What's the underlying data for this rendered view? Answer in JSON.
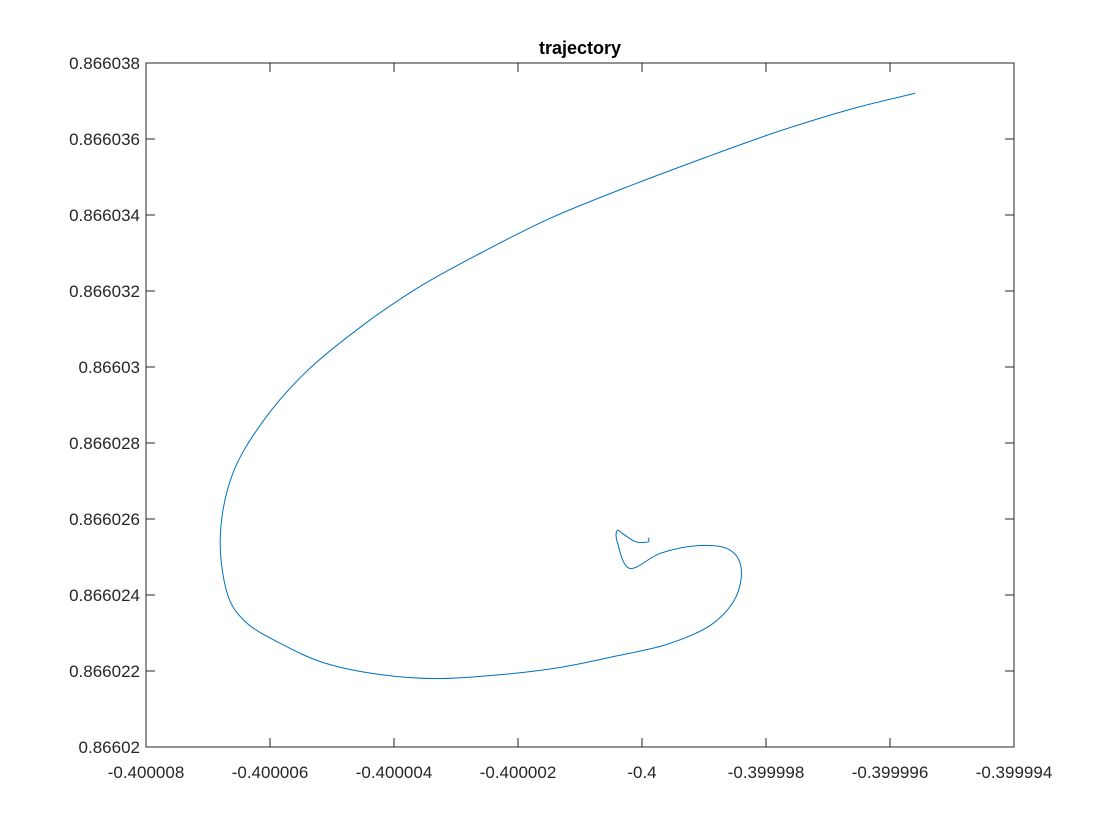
{
  "chart_data": {
    "type": "line",
    "title": "trajectory",
    "xlabel": "",
    "ylabel": "",
    "xlim": [
      -0.400008,
      -0.399994
    ],
    "ylim": [
      0.86602,
      0.866038
    ],
    "x_ticks": [
      -0.400008,
      -0.400006,
      -0.400004,
      -0.400002,
      -0.4,
      -0.399998,
      -0.399996,
      -0.399994
    ],
    "x_tick_labels": [
      "-0.400008",
      "-0.400006",
      "-0.400004",
      "-0.400002",
      "-0.4",
      "-0.399998",
      "-0.399996",
      "-0.399994"
    ],
    "y_ticks": [
      0.86602,
      0.866022,
      0.866024,
      0.866026,
      0.866028,
      0.86603,
      0.866032,
      0.866034,
      0.866036,
      0.866038
    ],
    "y_tick_labels": [
      "0.86602",
      "0.866022",
      "0.866024",
      "0.866026",
      "0.866028",
      "0.86603",
      "0.866032",
      "0.866034",
      "0.866036",
      "0.866038"
    ],
    "grid": false,
    "line_color": "#0072BD",
    "series": [
      {
        "x": [
          -0.3999956,
          -0.3999966,
          -0.3999978,
          -0.399999,
          -0.4000003,
          -0.4000015,
          -0.4000026,
          -0.4000036,
          -0.4000045,
          -0.4000054,
          -0.4000061,
          -0.4000066,
          -0.4000068,
          -0.4000067,
          -0.4000064,
          -0.4000058,
          -0.4000051,
          -0.4000042,
          -0.4000033,
          -0.4000023,
          -0.4000013,
          -0.4000004,
          -0.3999996,
          -0.3999989,
          -0.3999985,
          -0.3999984,
          -0.3999986,
          -0.3999991,
          -0.3999997,
          -0.4000002,
          -0.4000004,
          -0.4000004,
          -0.4000003,
          -0.4000001,
          -0.3999999,
          -0.3999999
        ],
        "y": [
          0.8660372,
          0.8660368,
          0.8660362,
          0.8660355,
          0.8660347,
          0.8660339,
          0.866033,
          0.8660321,
          0.8660311,
          0.8660299,
          0.8660286,
          0.8660272,
          0.8660256,
          0.8660241,
          0.8660233,
          0.8660227,
          0.8660222,
          0.8660219,
          0.8660218,
          0.8660219,
          0.8660221,
          0.8660224,
          0.8660227,
          0.8660232,
          0.8660239,
          0.8660247,
          0.8660252,
          0.8660253,
          0.8660251,
          0.8660247,
          0.8660254,
          0.8660257,
          0.8660256,
          0.8660254,
          0.8660254,
          0.8660255
        ]
      }
    ]
  }
}
